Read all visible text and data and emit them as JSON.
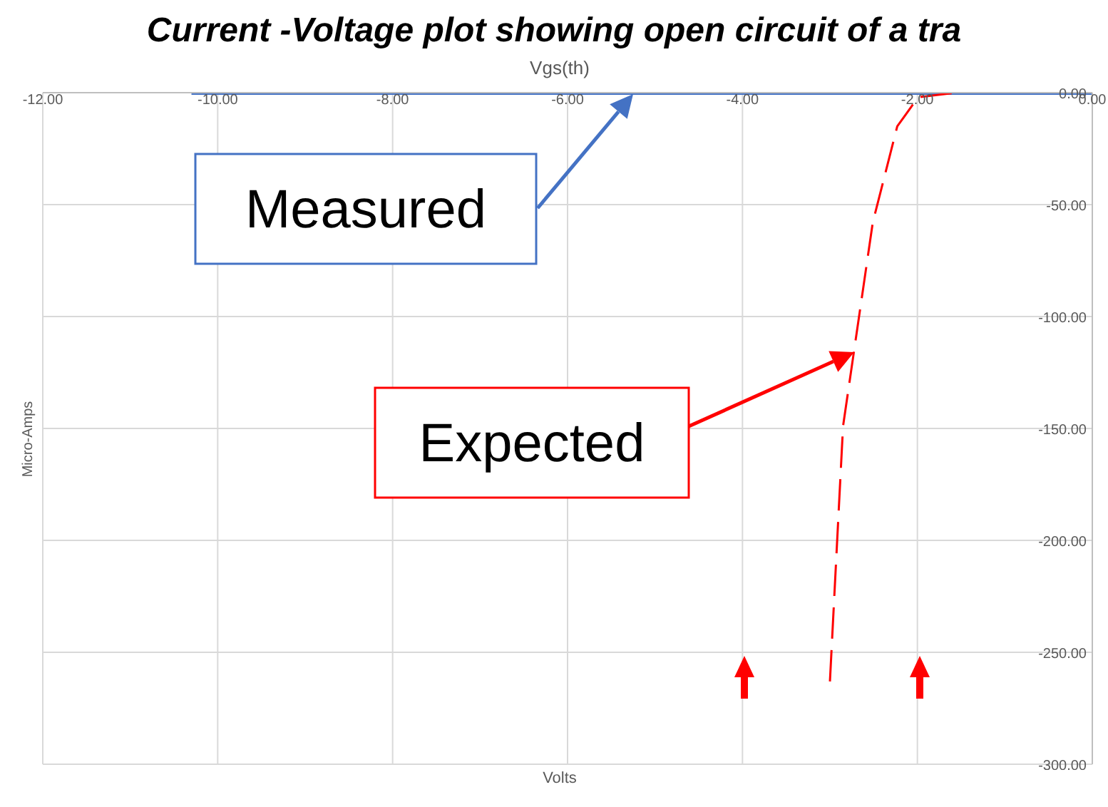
{
  "chart_data": {
    "type": "line",
    "title": "Current -Voltage plot showing open circuit of a tra",
    "subtitle": "Vgs(th)",
    "xlabel": "Volts",
    "ylabel": "Micro-Amps",
    "xlim": [
      -12,
      0
    ],
    "xticks": [
      {
        "value": -12,
        "label": "-12.00"
      },
      {
        "value": -10,
        "label": "-10.00"
      },
      {
        "value": -8,
        "label": "-8.00"
      },
      {
        "value": -6,
        "label": "-6.00"
      },
      {
        "value": -4,
        "label": "-4.00"
      },
      {
        "value": -2,
        "label": "-2.00"
      },
      {
        "value": 0,
        "label": "0.00"
      }
    ],
    "ylim": [
      -300,
      0
    ],
    "yticks": [
      {
        "value": -300,
        "label": "-300.00"
      },
      {
        "value": -250,
        "label": "-250.00"
      },
      {
        "value": -200,
        "label": "-200.00"
      },
      {
        "value": -150,
        "label": "-150.00"
      },
      {
        "value": -100,
        "label": "-100.00"
      },
      {
        "value": -50,
        "label": "-50.00"
      },
      {
        "value": 0,
        "label": "0.00"
      }
    ],
    "grid": true,
    "marker": "none",
    "series": [
      {
        "color": "#4472c4",
        "line_style": "solid",
        "x": [
          -10.3,
          -8,
          -6,
          -4,
          -2,
          0
        ],
        "values": [
          0,
          0,
          0,
          0,
          0,
          0
        ]
      },
      {
        "color": "#ff0000",
        "line_style": "dashed",
        "x": [
          -3.0,
          -2.85,
          -2.51,
          -2.23,
          -1.99,
          -1.55
        ],
        "values": [
          -263,
          -149,
          -58,
          -15,
          -2,
          0
        ]
      }
    ],
    "annotations": [
      "Measured",
      "Expected"
    ]
  }
}
